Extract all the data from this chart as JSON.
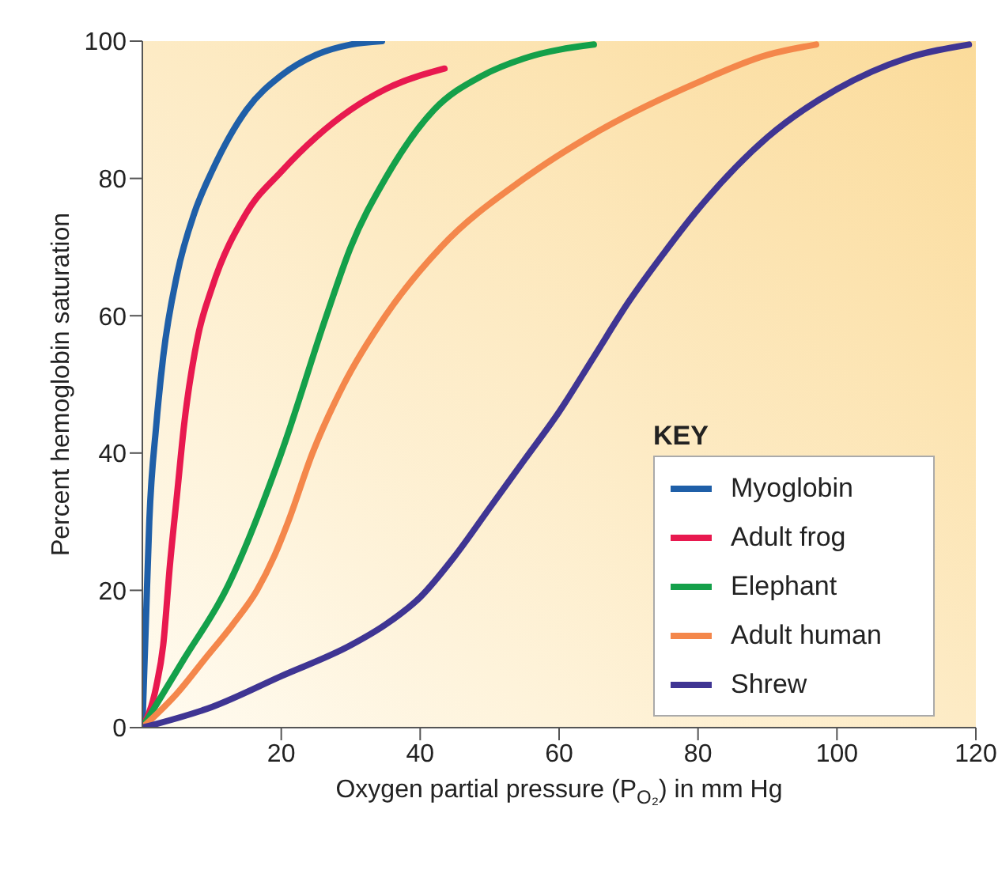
{
  "chart_data": {
    "type": "line",
    "xlabel": "Oxygen partial pressure (P$_{O₂}$) in mm Hg",
    "ylabel": "Percent hemoglobin saturation",
    "legend_title": "KEY",
    "legend": "bottom right",
    "grid": false,
    "marker": "none",
    "line_style": "solid",
    "xlim": [
      0,
      120
    ],
    "xticks": [
      20,
      40,
      60,
      80,
      100,
      120
    ],
    "ylim": [
      0,
      100
    ],
    "yticks": [
      0,
      20,
      40,
      60,
      80,
      100
    ],
    "series": [
      {
        "name": "Myoglobin",
        "color": "#1f5fa8",
        "x": [
          0,
          0.5,
          1,
          2,
          3,
          5,
          7.5,
          10,
          15,
          20,
          25,
          30,
          34.5
        ],
        "values": [
          0,
          15,
          30,
          44,
          54,
          66,
          75,
          81,
          90,
          95,
          98,
          99.5,
          100
        ]
      },
      {
        "name": "Adult frog",
        "color": "#e8194f",
        "x": [
          0,
          2,
          3,
          4,
          5,
          6,
          8,
          10,
          15,
          20,
          25,
          30,
          35,
          43.5
        ],
        "values": [
          0,
          6,
          12,
          24,
          34,
          44,
          57,
          64,
          75,
          81,
          86,
          90,
          93,
          96
        ]
      },
      {
        "name": "Elephant",
        "color": "#14a04a",
        "x": [
          0,
          6,
          12,
          20,
          26.5,
          30,
          35,
          42,
          49,
          55,
          65
        ],
        "values": [
          0,
          10,
          20,
          40,
          60,
          70,
          80,
          90,
          95,
          97.5,
          99.5
        ]
      },
      {
        "name": "Adult human",
        "color": "#f4874b",
        "x": [
          0,
          5,
          9,
          13,
          16.5,
          19,
          21,
          24.5,
          29,
          35,
          43,
          55,
          65,
          80,
          90,
          97
        ],
        "values": [
          0,
          5,
          10,
          15,
          20,
          25,
          30,
          40,
          50,
          60,
          70,
          80,
          86.5,
          94,
          98,
          99.5
        ]
      },
      {
        "name": "Shrew",
        "color": "#3f3593",
        "x": [
          0,
          10,
          20,
          30,
          35,
          40,
          45,
          50,
          55,
          60,
          65,
          70,
          75,
          80,
          90,
          100,
          110,
          119
        ],
        "values": [
          0,
          3,
          7.5,
          12,
          15,
          19,
          25,
          32,
          39,
          46,
          54,
          62,
          69,
          75.5,
          86,
          93,
          97.5,
          99.5
        ]
      }
    ]
  }
}
